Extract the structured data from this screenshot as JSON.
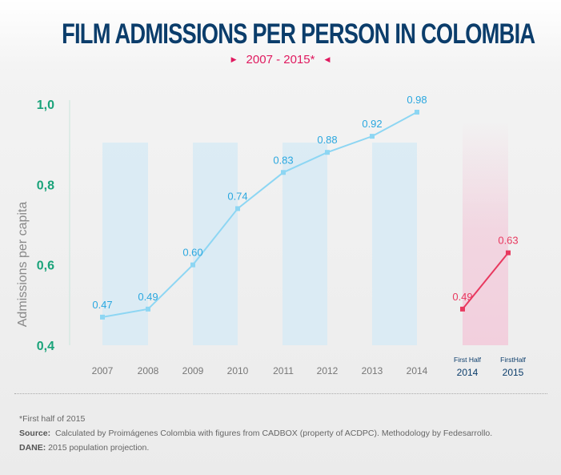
{
  "title": "FILM ADMISSIONS PER PERSON IN COLOMBIA",
  "subtitle": "2007 - 2015*",
  "chart_data": {
    "type": "line",
    "ylabel": "Admissions per capita",
    "ylim": [
      0.4,
      1.0
    ],
    "yticks": [
      "0,4",
      "0,6",
      "0,8",
      "1,0"
    ],
    "series": [
      {
        "categories": [
          "2007",
          "2008",
          "2009",
          "2010",
          "2011",
          "2012",
          "2013",
          "2014"
        ],
        "values": [
          0.47,
          0.49,
          0.6,
          0.74,
          0.83,
          0.88,
          0.92,
          0.98
        ],
        "labels": [
          "0.47",
          "0.49",
          "0.60",
          "0.74",
          "0.83",
          "0.88",
          "0.92",
          "0.98"
        ],
        "color": "#8dd6f3"
      },
      {
        "categories": [
          [
            "First Half",
            "2014"
          ],
          [
            "FirstHalf",
            "2015"
          ]
        ],
        "values": [
          0.49,
          0.63
        ],
        "labels": [
          "0.49",
          "0.63"
        ],
        "color": "#e8395f"
      }
    ],
    "colors": {
      "axis_ticks": "#1aa37a",
      "band": "#d6eaf5",
      "band_half": "#f2cfdd",
      "half_labels": "#0b3d6b"
    }
  },
  "footnotes": {
    "note": "*First half of 2015",
    "source_label": "Source:",
    "source": "Calculated by Proimágenes Colombia with figures from CADBOX (property of ACDPC). Methodology by Fedesarrollo.",
    "dane_label": "DANE:",
    "dane": "2015 population projection."
  }
}
